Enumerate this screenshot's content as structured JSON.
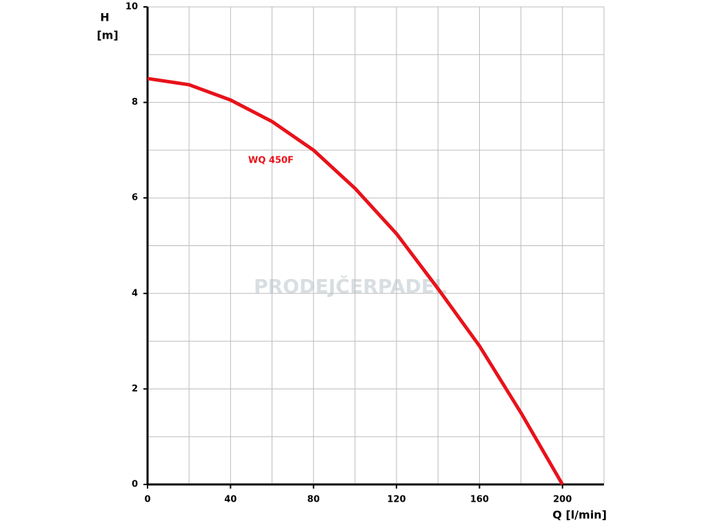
{
  "chart_data": {
    "type": "line",
    "y_label_top": "H",
    "y_label_unit": "[m]",
    "x_label": "Q [l/min]",
    "watermark": "PRODEJČERPADEL",
    "x": [
      0,
      20,
      40,
      60,
      80,
      100,
      120,
      140,
      160,
      180,
      200
    ],
    "series": [
      {
        "name": "WQ 450F",
        "color": "#e8121a",
        "values": [
          8.5,
          8.37,
          8.05,
          7.6,
          7.0,
          6.2,
          5.25,
          4.1,
          2.9,
          1.5,
          0
        ]
      }
    ],
    "xlim": [
      0,
      220
    ],
    "ylim": [
      0,
      10
    ],
    "xticks": [
      0,
      40,
      80,
      120,
      160,
      200
    ],
    "yticks": [
      0,
      2,
      4,
      6,
      8,
      10
    ],
    "xgridlines": [
      20,
      40,
      60,
      80,
      100,
      120,
      140,
      160,
      180,
      200,
      220
    ],
    "ygridlines": [
      1,
      2,
      3,
      4,
      5,
      6,
      7,
      8,
      9,
      10
    ],
    "grid": true
  }
}
